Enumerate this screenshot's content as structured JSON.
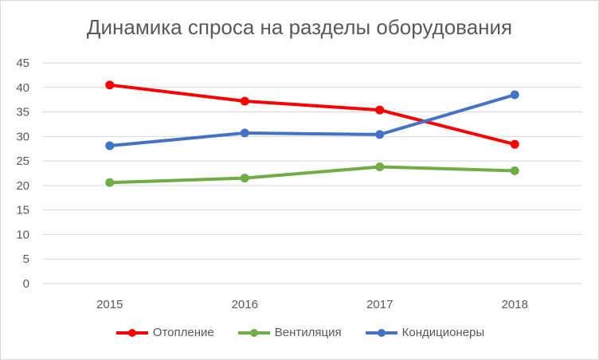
{
  "chart_data": {
    "type": "line",
    "title": "Динамика спроса на разделы оборудования",
    "xlabel": "",
    "ylabel": "",
    "categories": [
      "2015",
      "2016",
      "2017",
      "2018"
    ],
    "ylim": [
      0,
      45
    ],
    "yticks": [
      0,
      5,
      10,
      15,
      20,
      25,
      30,
      35,
      40,
      45
    ],
    "grid": true,
    "legend_position": "bottom",
    "series": [
      {
        "name": "Отопление",
        "values": [
          40.5,
          37.2,
          35.4,
          28.4
        ],
        "color": "#ff0000"
      },
      {
        "name": "Вентиляция",
        "values": [
          20.6,
          21.5,
          23.8,
          23.0
        ],
        "color": "#70ad47"
      },
      {
        "name": "Кондиционеры",
        "values": [
          28.1,
          30.7,
          30.4,
          38.5
        ],
        "color": "#4472c4"
      }
    ]
  }
}
